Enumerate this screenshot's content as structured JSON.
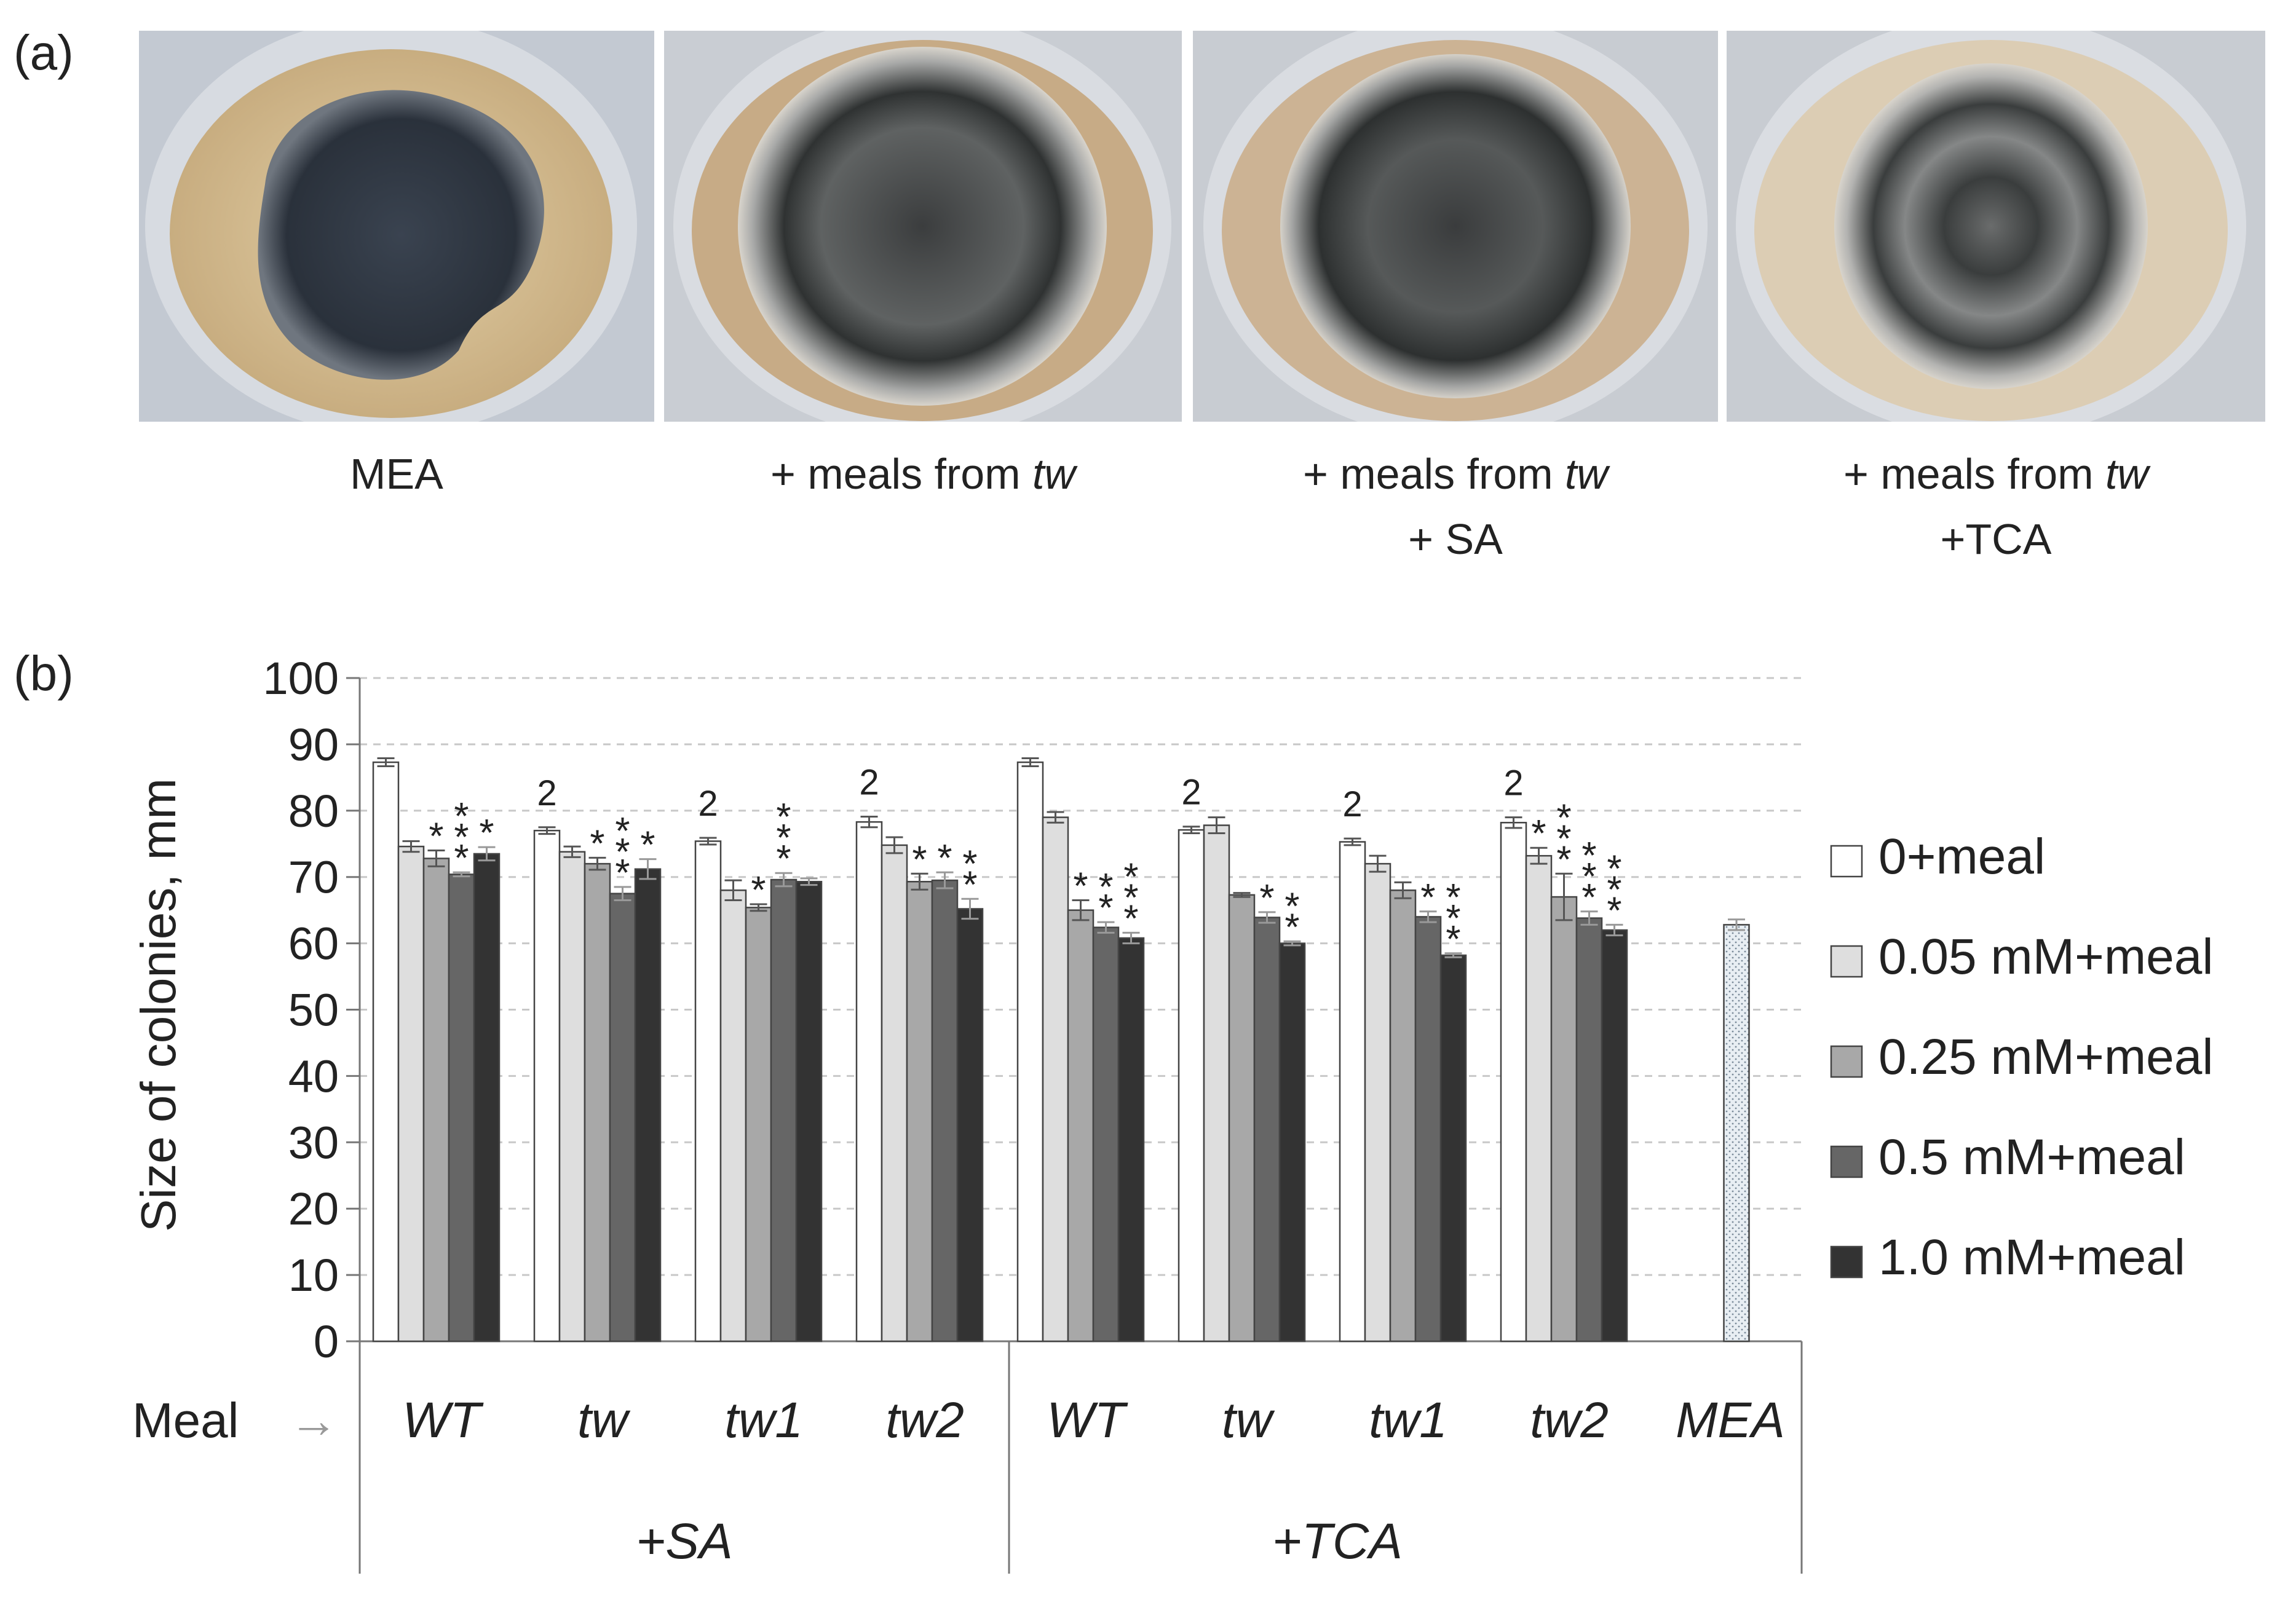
{
  "panel_a": {
    "label": "(a)",
    "plates": [
      {
        "caption_lines": [
          {
            "text": "MEA",
            "italic_suffix": ""
          }
        ]
      },
      {
        "caption_lines": [
          {
            "text": "+ meals from ",
            "italic_suffix": "tw"
          }
        ]
      },
      {
        "caption_lines": [
          {
            "text": "+ meals from ",
            "italic_suffix": "tw"
          },
          {
            "text": "+ SA",
            "italic_suffix": ""
          }
        ]
      },
      {
        "caption_lines": [
          {
            "text": "+ meals from ",
            "italic_suffix": "tw"
          },
          {
            "text": "+TCA",
            "italic_suffix": ""
          }
        ]
      }
    ]
  },
  "panel_b": {
    "label": "(b)"
  },
  "chart_data": {
    "type": "bar",
    "ylabel": "Size of colonies, mm",
    "ylim": [
      0,
      100
    ],
    "yticks": [
      0,
      10,
      20,
      30,
      40,
      50,
      60,
      70,
      80,
      90,
      100
    ],
    "grid": "horizontal dashed",
    "x_axis_row_label": "Meal",
    "x_axis_arrow": "→",
    "groups": [
      {
        "label": "+SA",
        "categories": [
          "WT",
          "tw",
          "tw1",
          "tw2"
        ]
      },
      {
        "label": "+TCA",
        "categories": [
          "WT",
          "tw",
          "tw1",
          "tw2"
        ]
      },
      {
        "label": "",
        "categories": [
          "MEA"
        ]
      }
    ],
    "categories": [
      "WT",
      "tw",
      "tw1",
      "tw2",
      "WT",
      "tw",
      "tw1",
      "tw2",
      "MEA"
    ],
    "series": [
      {
        "name": "0+meal",
        "color": "#ffffff",
        "values": [
          87.3,
          77.0,
          75.4,
          78.3,
          87.3,
          77.1,
          75.3,
          78.2,
          null
        ],
        "errors": [
          0.6,
          0.5,
          0.5,
          0.8,
          0.6,
          0.5,
          0.5,
          0.8,
          null
        ]
      },
      {
        "name": "0.05 mM+meal",
        "color": "#dedede",
        "values": [
          74.6,
          73.8,
          68.0,
          74.8,
          79.0,
          77.8,
          72.0,
          73.2,
          null
        ],
        "errors": [
          0.8,
          0.8,
          1.5,
          1.2,
          0.8,
          1.2,
          1.2,
          1.2,
          null
        ]
      },
      {
        "name": "0.25 mM+meal",
        "color": "#a8a8a8",
        "values": [
          72.8,
          72.0,
          65.4,
          69.3,
          65.0,
          67.3,
          68.0,
          67.0,
          null
        ],
        "errors": [
          1.2,
          0.9,
          0.5,
          1.2,
          1.5,
          0.3,
          1.2,
          3.5,
          null
        ]
      },
      {
        "name": "0.5 mM+meal",
        "color": "#666666",
        "values": [
          70.4,
          67.5,
          69.6,
          69.5,
          62.4,
          63.9,
          64.0,
          63.8,
          null
        ],
        "errors": [
          0.3,
          1.0,
          1.0,
          1.2,
          0.8,
          0.8,
          0.8,
          1.0,
          null
        ]
      },
      {
        "name": "1.0 mM+meal",
        "color": "#333333",
        "values": [
          73.5,
          71.2,
          69.3,
          65.2,
          60.8,
          60.0,
          58.2,
          62.0,
          null
        ],
        "errors": [
          1.0,
          1.5,
          0.5,
          1.5,
          0.8,
          0.3,
          0.3,
          0.8,
          null
        ]
      },
      {
        "name": "MEA",
        "color": "#e8eef3",
        "pattern": "dotted",
        "show_in_legend": false,
        "values": [
          null,
          null,
          null,
          null,
          null,
          null,
          null,
          null,
          62.8
        ],
        "errors": [
          null,
          null,
          null,
          null,
          null,
          null,
          null,
          null,
          0.8
        ]
      }
    ],
    "annotations": [
      {
        "category_index": 1,
        "series_index": 0,
        "text": "2"
      },
      {
        "category_index": 2,
        "series_index": 0,
        "text": "2"
      },
      {
        "category_index": 3,
        "series_index": 0,
        "text": "2"
      },
      {
        "category_index": 5,
        "series_index": 0,
        "text": "2"
      },
      {
        "category_index": 6,
        "series_index": 0,
        "text": "2"
      },
      {
        "category_index": 7,
        "series_index": 0,
        "text": "2"
      },
      {
        "category_index": 0,
        "series_index": 2,
        "text": "*"
      },
      {
        "category_index": 0,
        "series_index": 3,
        "text": "***"
      },
      {
        "category_index": 0,
        "series_index": 4,
        "text": "*"
      },
      {
        "category_index": 1,
        "series_index": 2,
        "text": "*"
      },
      {
        "category_index": 1,
        "series_index": 3,
        "text": "***"
      },
      {
        "category_index": 1,
        "series_index": 4,
        "text": "*"
      },
      {
        "category_index": 2,
        "series_index": 2,
        "text": "*"
      },
      {
        "category_index": 2,
        "series_index": 3,
        "text": "***"
      },
      {
        "category_index": 3,
        "series_index": 2,
        "text": "*"
      },
      {
        "category_index": 3,
        "series_index": 3,
        "text": "*"
      },
      {
        "category_index": 3,
        "series_index": 4,
        "text": "**"
      },
      {
        "category_index": 4,
        "series_index": 2,
        "text": "*"
      },
      {
        "category_index": 4,
        "series_index": 3,
        "text": "**"
      },
      {
        "category_index": 4,
        "series_index": 4,
        "text": "***"
      },
      {
        "category_index": 5,
        "series_index": 3,
        "text": "*"
      },
      {
        "category_index": 5,
        "series_index": 4,
        "text": "**"
      },
      {
        "category_index": 6,
        "series_index": 3,
        "text": "*"
      },
      {
        "category_index": 6,
        "series_index": 4,
        "text": "***"
      },
      {
        "category_index": 7,
        "series_index": 1,
        "text": "*"
      },
      {
        "category_index": 7,
        "series_index": 2,
        "text": "***"
      },
      {
        "category_index": 7,
        "series_index": 3,
        "text": "***"
      },
      {
        "category_index": 7,
        "series_index": 4,
        "text": "***"
      }
    ]
  }
}
